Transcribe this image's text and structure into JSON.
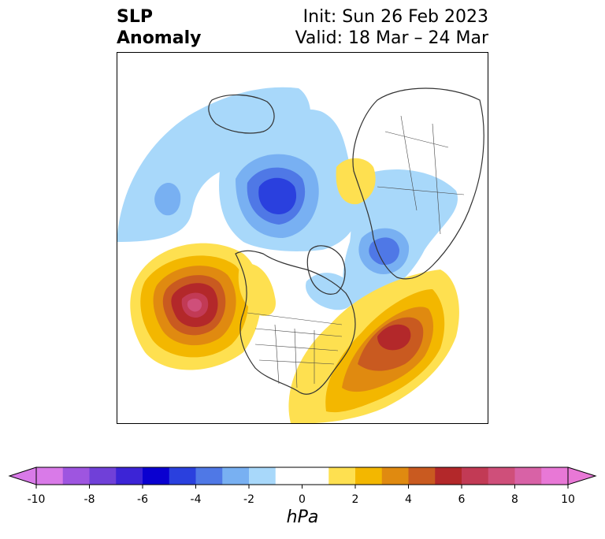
{
  "header": {
    "title_line1": "SLP",
    "title_line2": "Anomaly",
    "init_text": "Init: Sun 26 Feb 2023",
    "valid_text": "Valid: 18 Mar – 24 Mar"
  },
  "colorbar": {
    "unit": "hPa",
    "tick_labels": [
      "-10",
      "-8",
      "-6",
      "-4",
      "-2",
      "0",
      "2",
      "4",
      "6",
      "8",
      "10"
    ],
    "min": -10,
    "max": 10,
    "bin_colors": [
      "#d97ae8",
      "#9e55e0",
      "#7040d8",
      "#3c24d6",
      "#0a00d0",
      "#2a40de",
      "#4f78e6",
      "#78b0f2",
      "#a8d8fa",
      "#ffffff",
      "#ffffff",
      "#fee050",
      "#f3b700",
      "#e08a10",
      "#c95a20",
      "#b3282a",
      "#c23a55",
      "#cf4f7a",
      "#d862a6",
      "#e878d6"
    ],
    "extend_low_color": "#d97ae8",
    "extend_high_color": "#e878d6"
  },
  "map": {
    "projection": "polar-stereographic north",
    "features": {
      "land_outline_color": "#333333",
      "border_color": "#444444"
    }
  }
}
